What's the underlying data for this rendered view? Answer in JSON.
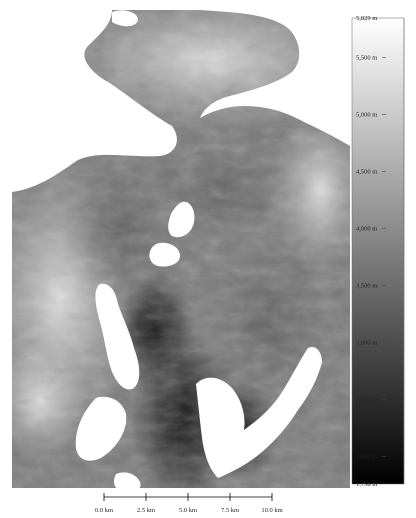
{
  "legend": {
    "max_label": "5,829 m",
    "min_label": "1,758 m",
    "ticks": [
      {
        "value": 5500,
        "label": "5,500 m"
      },
      {
        "value": 5000,
        "label": "5,000 m"
      },
      {
        "value": 4500,
        "label": "4,500 m"
      },
      {
        "value": 4000,
        "label": "4,000 m"
      },
      {
        "value": 3500,
        "label": "3,500 m"
      },
      {
        "value": 3000,
        "label": "3,000 m"
      },
      {
        "value": 2500,
        "label": "2,500 m"
      },
      {
        "value": 2000,
        "label": "2,000 m"
      }
    ],
    "range": [
      1758,
      5829
    ],
    "colors": {
      "high": "#ffffff",
      "low": "#000000"
    }
  },
  "scale_bar": {
    "labels": [
      "0.0 km",
      "2.5 km",
      "5.0 km",
      "7.5 km",
      "10.0 km"
    ]
  }
}
